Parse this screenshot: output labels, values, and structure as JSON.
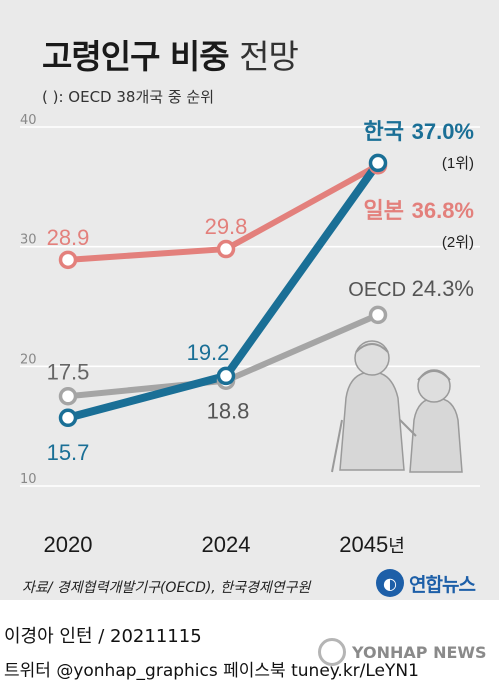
{
  "title": "고령인구 비중",
  "title_suffix": "전망",
  "subtitle": "(   ): OECD 38개국 중 순위",
  "year_unit": "년",
  "colors": {
    "korea": "#1a6f96",
    "japan": "#e3807c",
    "oecd": "#a5a5a5",
    "background": "#eaeaea",
    "grid": "#ffffff"
  },
  "chart_data": {
    "type": "line",
    "title": "고령인구 비중 전망",
    "categories": [
      "2020",
      "2024",
      "2045"
    ],
    "ylim": [
      10,
      40
    ],
    "yticks": [
      "10",
      "20",
      "30",
      "40"
    ],
    "grid": true,
    "series": [
      {
        "name": "일본",
        "key": "japan",
        "values": [
          28.9,
          29.8,
          36.8
        ],
        "labels": [
          "28.9",
          "29.8",
          "36.8%"
        ],
        "rank": "(2위)"
      },
      {
        "name": "OECD",
        "key": "oecd",
        "values": [
          17.5,
          18.8,
          24.3
        ],
        "labels": [
          "17.5",
          "18.8",
          "24.3%"
        ]
      },
      {
        "name": "한국",
        "key": "korea",
        "values": [
          15.7,
          19.2,
          37.0
        ],
        "labels": [
          "15.7",
          "19.2",
          "37.0%"
        ],
        "rank": "(1위)"
      }
    ]
  },
  "footer": {
    "source": "자료/ 경제협력개발기구(OECD), 한국경제연구원",
    "logo_text": "연합뉴스",
    "credit_line1": "이경아 인턴 / 20211115",
    "credit_line2": "트위터 @yonhap_graphics  페이스북 tuney.kr/LeYN1",
    "watermark": "YONHAP NEWS"
  }
}
